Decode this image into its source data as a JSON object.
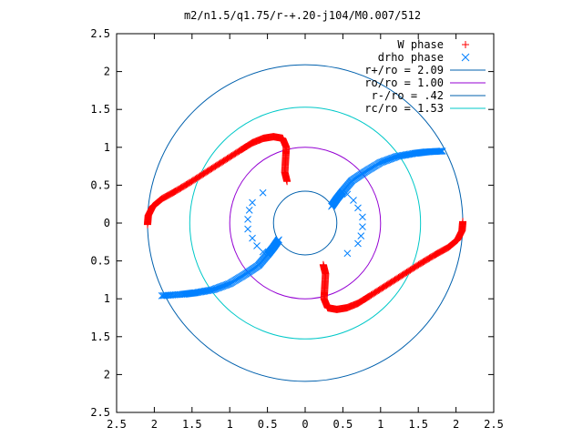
{
  "chart_data": {
    "type": "scatter",
    "title": "m2/n1.5/q1.75/r-+.20-j104/M0.007/512",
    "xlabel": "",
    "ylabel": "",
    "xlim": [
      -2.5,
      2.5
    ],
    "ylim": [
      -2.5,
      2.5
    ],
    "x_ticks": [
      -2.5,
      -2,
      -1.5,
      -1,
      -0.5,
      0,
      0.5,
      1,
      1.5,
      2,
      2.5
    ],
    "y_ticks": [
      -2.5,
      -2,
      -1.5,
      -1,
      -0.5,
      0,
      0.5,
      1,
      1.5,
      2,
      2.5
    ],
    "x_tick_labels": [
      "2.5",
      "2",
      "1.5",
      "1",
      "0.5",
      "0",
      "0.5",
      "1",
      "1.5",
      "2",
      "2.5"
    ],
    "y_tick_labels": [
      "2.5",
      "2",
      "1.5",
      "1",
      "0.5",
      "0",
      "0.5",
      "1",
      "1.5",
      "2",
      "2.5"
    ],
    "grid": false,
    "legend_position": "top-right",
    "series": [
      {
        "name": "W phase",
        "marker": "plus",
        "color": "#ff0000",
        "arms": [
          [
            [
              -2.09,
              -0.02
            ],
            [
              -2.08,
              0.1
            ],
            [
              -2.02,
              0.22
            ],
            [
              -1.9,
              0.32
            ],
            [
              -1.72,
              0.42
            ],
            [
              -1.52,
              0.54
            ],
            [
              -1.3,
              0.68
            ],
            [
              -1.08,
              0.82
            ],
            [
              -0.86,
              0.96
            ],
            [
              -0.7,
              1.06
            ],
            [
              -0.55,
              1.12
            ],
            [
              -0.42,
              1.14
            ],
            [
              -0.3,
              1.12
            ],
            [
              -0.25,
              1.0
            ],
            [
              -0.26,
              0.84
            ],
            [
              -0.27,
              0.67
            ],
            [
              -0.24,
              0.55
            ]
          ],
          [
            [
              2.09,
              0.02
            ],
            [
              2.08,
              -0.1
            ],
            [
              2.02,
              -0.22
            ],
            [
              1.9,
              -0.32
            ],
            [
              1.72,
              -0.42
            ],
            [
              1.52,
              -0.54
            ],
            [
              1.3,
              -0.68
            ],
            [
              1.08,
              -0.82
            ],
            [
              0.86,
              -0.96
            ],
            [
              0.7,
              -1.06
            ],
            [
              0.55,
              -1.12
            ],
            [
              0.42,
              -1.14
            ],
            [
              0.3,
              -1.12
            ],
            [
              0.25,
              -1.0
            ],
            [
              0.26,
              -0.84
            ],
            [
              0.27,
              -0.67
            ],
            [
              0.24,
              -0.55
            ]
          ]
        ]
      },
      {
        "name": "drho phase",
        "marker": "cross",
        "color": "#0080ff",
        "arms": [
          [
            [
              0.35,
              0.22
            ],
            [
              0.42,
              0.32
            ],
            [
              0.5,
              0.42
            ],
            [
              0.62,
              0.56
            ],
            [
              0.8,
              0.68
            ],
            [
              1.0,
              0.8
            ],
            [
              1.22,
              0.88
            ],
            [
              1.45,
              0.92
            ],
            [
              1.62,
              0.94
            ],
            [
              1.82,
              0.95
            ]
          ],
          [
            [
              -0.35,
              -0.22
            ],
            [
              -0.42,
              -0.32
            ],
            [
              -0.5,
              -0.42
            ],
            [
              -0.62,
              -0.56
            ],
            [
              -0.8,
              -0.68
            ],
            [
              -1.0,
              -0.8
            ],
            [
              -1.22,
              -0.88
            ],
            [
              -1.45,
              -0.92
            ],
            [
              -1.62,
              -0.94
            ],
            [
              -1.9,
              -0.96
            ]
          ]
        ],
        "scattered": [
          [
            0.56,
            0.38
          ],
          [
            0.64,
            0.3
          ],
          [
            0.7,
            0.2
          ],
          [
            0.76,
            0.08
          ],
          [
            0.76,
            -0.05
          ],
          [
            0.74,
            -0.17
          ],
          [
            0.7,
            -0.27
          ],
          [
            0.56,
            -0.4
          ],
          [
            -0.56,
            -0.38
          ],
          [
            -0.64,
            -0.3
          ],
          [
            -0.7,
            -0.2
          ],
          [
            -0.76,
            -0.08
          ],
          [
            -0.76,
            0.05
          ],
          [
            -0.74,
            0.17
          ],
          [
            -0.7,
            0.27
          ],
          [
            -0.56,
            0.4
          ]
        ]
      }
    ],
    "circles": [
      {
        "name": "r+/ro = 2.09",
        "radius": 2.09,
        "color": "#0060ad"
      },
      {
        "name": "ro/ro = 1.00",
        "radius": 1.0,
        "color": "#9400d3"
      },
      {
        "name": "r-/ro = .42",
        "radius": 0.42,
        "color": "#0060ad"
      },
      {
        "name": "rc/ro = 1.53",
        "radius": 1.53,
        "color": "#00c8c8"
      }
    ]
  }
}
